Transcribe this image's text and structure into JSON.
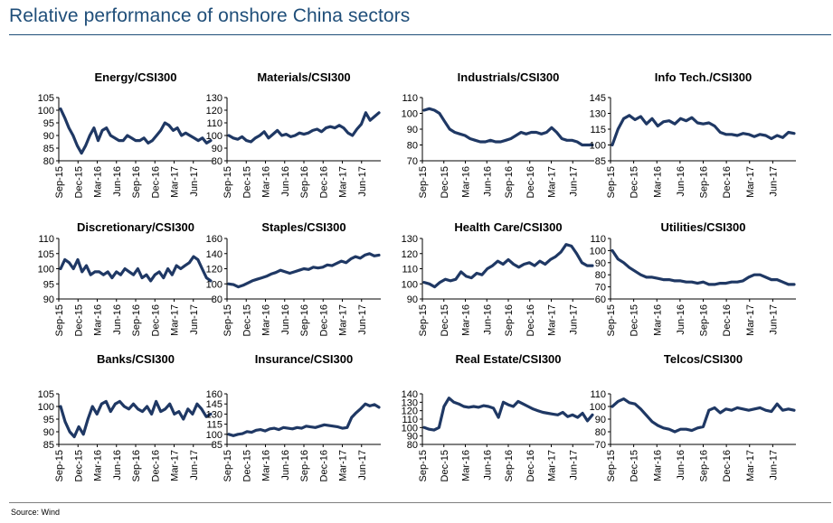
{
  "page": {
    "title": "Relative performance of onshore China sectors",
    "source": "Source: Wind",
    "line_color": "#1f3864"
  },
  "chart_data": [
    {
      "type": "line",
      "title": "Energy/CSI300",
      "ylim": [
        80,
        105
      ],
      "yticks": [
        80,
        85,
        90,
        95,
        100,
        105
      ],
      "xticks": [
        "Sep-15",
        "Dec-15",
        "Mar-16",
        "Jun-16",
        "Sep-16",
        "Dec-16",
        "Mar-17",
        "Jun-17"
      ],
      "series": [
        {
          "name": "Energy/CSI300",
          "values": [
            100.5,
            97,
            93,
            90,
            86,
            83,
            86,
            90,
            93,
            88,
            92,
            93,
            90,
            89,
            88,
            88,
            90,
            89,
            88,
            88,
            89,
            87,
            88,
            90,
            92,
            95,
            94,
            92,
            93,
            90,
            91,
            90,
            89,
            88,
            89,
            87,
            88
          ]
        }
      ]
    },
    {
      "type": "line",
      "title": "Materials/CSI300",
      "ylim": [
        80,
        130
      ],
      "yticks": [
        80,
        90,
        100,
        110,
        120,
        130
      ],
      "xticks": [
        "Sep-15",
        "Dec-15",
        "Mar-16",
        "Jun-16",
        "Sep-16",
        "Dec-16",
        "Mar-17",
        "Jun-17"
      ],
      "series": [
        {
          "name": "Materials/CSI300",
          "values": [
            100,
            98,
            97,
            99,
            96,
            95,
            98,
            100,
            103,
            98,
            101,
            104,
            100,
            101,
            99,
            100,
            102,
            101,
            102,
            104,
            105,
            103,
            106,
            107,
            106,
            108,
            106,
            102,
            100,
            105,
            109,
            118,
            112,
            115,
            118
          ]
        }
      ]
    },
    {
      "type": "line",
      "title": "Industrials/CSI300",
      "ylim": [
        70,
        110
      ],
      "yticks": [
        70,
        80,
        90,
        100,
        110
      ],
      "xticks": [
        "Sep-15",
        "Dec-15",
        "Mar-16",
        "Jun-16",
        "Sep-16",
        "Dec-16",
        "Mar-17",
        "Jun-17"
      ],
      "series": [
        {
          "name": "Industrials/CSI300",
          "values": [
            102,
            103,
            102,
            100,
            95,
            90,
            88,
            87,
            86,
            84,
            83,
            82,
            82,
            83,
            82,
            82,
            83,
            84,
            86,
            88,
            87,
            88,
            88,
            87,
            88,
            91,
            88,
            84,
            83,
            83,
            82,
            80,
            80,
            80
          ]
        }
      ]
    },
    {
      "type": "line",
      "title": "Info Tech./CSI300",
      "ylim": [
        85,
        145
      ],
      "yticks": [
        85,
        100,
        115,
        130,
        145
      ],
      "xticks": [
        "Sep-15",
        "Dec-15",
        "Mar-16",
        "Jun-16",
        "Sep-16",
        "Dec-16",
        "Mar-17",
        "Jun-17"
      ],
      "series": [
        {
          "name": "Info Tech./CSI300",
          "values": [
            100,
            115,
            125,
            128,
            124,
            127,
            120,
            125,
            118,
            122,
            123,
            120,
            125,
            123,
            126,
            121,
            120,
            121,
            118,
            112,
            110,
            110,
            109,
            111,
            110,
            108,
            110,
            109,
            106,
            109,
            107,
            112,
            111
          ]
        }
      ]
    },
    {
      "type": "line",
      "title": "Discretionary/CSI300",
      "ylim": [
        90,
        110
      ],
      "yticks": [
        90,
        95,
        100,
        105,
        110
      ],
      "xticks": [
        "Sep-15",
        "Dec-15",
        "Mar-16",
        "Jun-16",
        "Sep-16",
        "Dec-16",
        "Mar-17",
        "Jun-17"
      ],
      "series": [
        {
          "name": "Discretionary/CSI300",
          "values": [
            100,
            103,
            102,
            100,
            103,
            99,
            101,
            98,
            99,
            99,
            98,
            99,
            97,
            99,
            98,
            100,
            99,
            98,
            100,
            97,
            98,
            96,
            98,
            99,
            97,
            100,
            98,
            101,
            100,
            101,
            102,
            104,
            103,
            100,
            97,
            96
          ]
        }
      ]
    },
    {
      "type": "line",
      "title": "Staples/CSI300",
      "ylim": [
        80,
        160
      ],
      "yticks": [
        80,
        100,
        120,
        140,
        160
      ],
      "xticks": [
        "Sep-15",
        "Dec-15",
        "Mar-16",
        "Jun-16",
        "Sep-16",
        "Dec-16",
        "Mar-17",
        "Jun-17"
      ],
      "series": [
        {
          "name": "Staples/CSI300",
          "values": [
            100,
            99,
            96,
            98,
            101,
            104,
            106,
            108,
            110,
            113,
            115,
            118,
            116,
            114,
            116,
            118,
            120,
            119,
            122,
            121,
            122,
            125,
            124,
            127,
            130,
            128,
            133,
            136,
            134,
            138,
            140,
            137,
            138
          ]
        }
      ]
    },
    {
      "type": "line",
      "title": "Health Care/CSI300",
      "ylim": [
        90,
        130
      ],
      "yticks": [
        90,
        100,
        110,
        120,
        130
      ],
      "xticks": [
        "Sep-15",
        "Dec-15",
        "Mar-16",
        "Jun-16",
        "Sep-16",
        "Dec-16",
        "Mar-17",
        "Jun-17"
      ],
      "series": [
        {
          "name": "Health Care/CSI300",
          "values": [
            101,
            100,
            98,
            101,
            103,
            102,
            103,
            108,
            105,
            104,
            107,
            106,
            110,
            112,
            115,
            113,
            116,
            113,
            111,
            113,
            114,
            112,
            115,
            113,
            116,
            118,
            121,
            126,
            125,
            120,
            114,
            112,
            112
          ]
        }
      ]
    },
    {
      "type": "line",
      "title": "Utilities/CSI300",
      "ylim": [
        60,
        110
      ],
      "yticks": [
        60,
        70,
        80,
        90,
        100,
        110
      ],
      "xticks": [
        "Sep-15",
        "Dec-15",
        "Mar-16",
        "Jun-16",
        "Sep-16",
        "Dec-16",
        "Mar-17",
        "Jun-17"
      ],
      "series": [
        {
          "name": "Utilities/CSI300",
          "values": [
            100,
            93,
            90,
            86,
            83,
            80,
            78,
            78,
            77,
            76,
            76,
            75,
            75,
            74,
            74,
            73,
            74,
            72,
            72,
            73,
            73,
            74,
            74,
            75,
            78,
            80,
            80,
            78,
            76,
            76,
            74,
            72,
            72
          ]
        }
      ]
    },
    {
      "type": "line",
      "title": "Banks/CSI300",
      "ylim": [
        85,
        105
      ],
      "yticks": [
        85,
        90,
        95,
        100,
        105
      ],
      "xticks": [
        "Sep-15",
        "Dec-15",
        "Mar-16",
        "Jun-16",
        "Sep-16",
        "Dec-16",
        "Mar-17",
        "Jun-17"
      ],
      "series": [
        {
          "name": "Banks/CSI300",
          "values": [
            100,
            94,
            90,
            88,
            92,
            89,
            95,
            100,
            97,
            101,
            102,
            98,
            101,
            102,
            100,
            99,
            101,
            99,
            98,
            100,
            97,
            102,
            98,
            99,
            101,
            97,
            98,
            95,
            99,
            97,
            101,
            99,
            96,
            97
          ]
        }
      ]
    },
    {
      "type": "line",
      "title": "Insurance/CSI300",
      "ylim": [
        85,
        160
      ],
      "yticks": [
        85,
        100,
        115,
        130,
        145,
        160
      ],
      "xticks": [
        "Sep-15",
        "Dec-15",
        "Mar-16",
        "Jun-16",
        "Sep-16",
        "Dec-16",
        "Mar-17",
        "Jun-17"
      ],
      "series": [
        {
          "name": "Insurance/CSI300",
          "values": [
            100,
            98,
            100,
            101,
            104,
            103,
            106,
            107,
            105,
            108,
            109,
            107,
            110,
            109,
            108,
            110,
            109,
            112,
            111,
            110,
            112,
            114,
            113,
            112,
            111,
            109,
            110,
            125,
            132,
            138,
            145,
            142,
            144,
            140
          ]
        }
      ]
    },
    {
      "type": "line",
      "title": "Real Estate/CSI300",
      "ylim": [
        80,
        140
      ],
      "yticks": [
        80,
        90,
        100,
        110,
        120,
        130,
        140
      ],
      "xticks": [
        "Sep-15",
        "Dec-15",
        "Mar-16",
        "Jun-16",
        "Sep-16",
        "Dec-16",
        "Mar-17",
        "Jun-17"
      ],
      "series": [
        {
          "name": "Real Estate/CSI300",
          "values": [
            100,
            98,
            97,
            100,
            125,
            135,
            130,
            128,
            125,
            124,
            125,
            124,
            126,
            125,
            123,
            112,
            130,
            127,
            125,
            131,
            128,
            125,
            122,
            120,
            118,
            117,
            116,
            115,
            118,
            113,
            115,
            112,
            117,
            108,
            115
          ]
        }
      ]
    },
    {
      "type": "line",
      "title": "Telcos/CSI300",
      "ylim": [
        70,
        110
      ],
      "yticks": [
        70,
        80,
        90,
        100,
        110
      ],
      "xticks": [
        "Sep-15",
        "Dec-15",
        "Mar-16",
        "Jun-16",
        "Sep-16",
        "Dec-16",
        "Mar-17",
        "Jun-17"
      ],
      "series": [
        {
          "name": "Telcos/CSI300",
          "values": [
            100,
            104,
            106,
            103,
            102,
            98,
            93,
            88,
            85,
            83,
            82,
            80,
            82,
            82,
            81,
            83,
            84,
            97,
            99,
            95,
            98,
            97,
            99,
            98,
            97,
            98,
            99,
            97,
            96,
            102,
            97,
            98,
            97
          ]
        }
      ]
    }
  ]
}
